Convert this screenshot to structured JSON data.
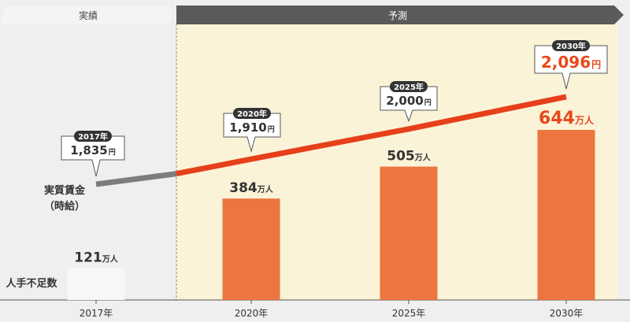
{
  "header": {
    "actual_label": "実績",
    "forecast_label": "予測"
  },
  "chart_data": {
    "type": "bar+line",
    "categories": [
      "2017年",
      "2020年",
      "2025年",
      "2030年"
    ],
    "series": [
      {
        "name": "人手不足数",
        "type": "bar",
        "values": [
          121,
          384,
          505,
          644
        ],
        "labels": [
          "121",
          "384",
          "505",
          "644"
        ],
        "unit": "万人"
      },
      {
        "name": "実質賃金（時給）",
        "type": "line",
        "values": [
          1835,
          1910,
          2000,
          2096
        ],
        "labels": [
          "1,835",
          "1,910",
          "2,000",
          "2,096"
        ],
        "unit": "円",
        "callout_years": [
          "2017年",
          "2020年",
          "2025年",
          "2030年"
        ]
      }
    ],
    "wage_label_line1": "実質賃金",
    "wage_label_line2": "（時給）",
    "shortage_label": "人手不足数",
    "grid": false,
    "colors": {
      "bar_forecast": "#ec7540",
      "bar_actual": "#f7f7f7",
      "line_forecast": "#e6401a",
      "line_actual": "#7d7d7d",
      "forecast_bg": "#fbf3d8",
      "header_dark": "#5a5a5a",
      "highlight_text": "#e8491a"
    }
  }
}
